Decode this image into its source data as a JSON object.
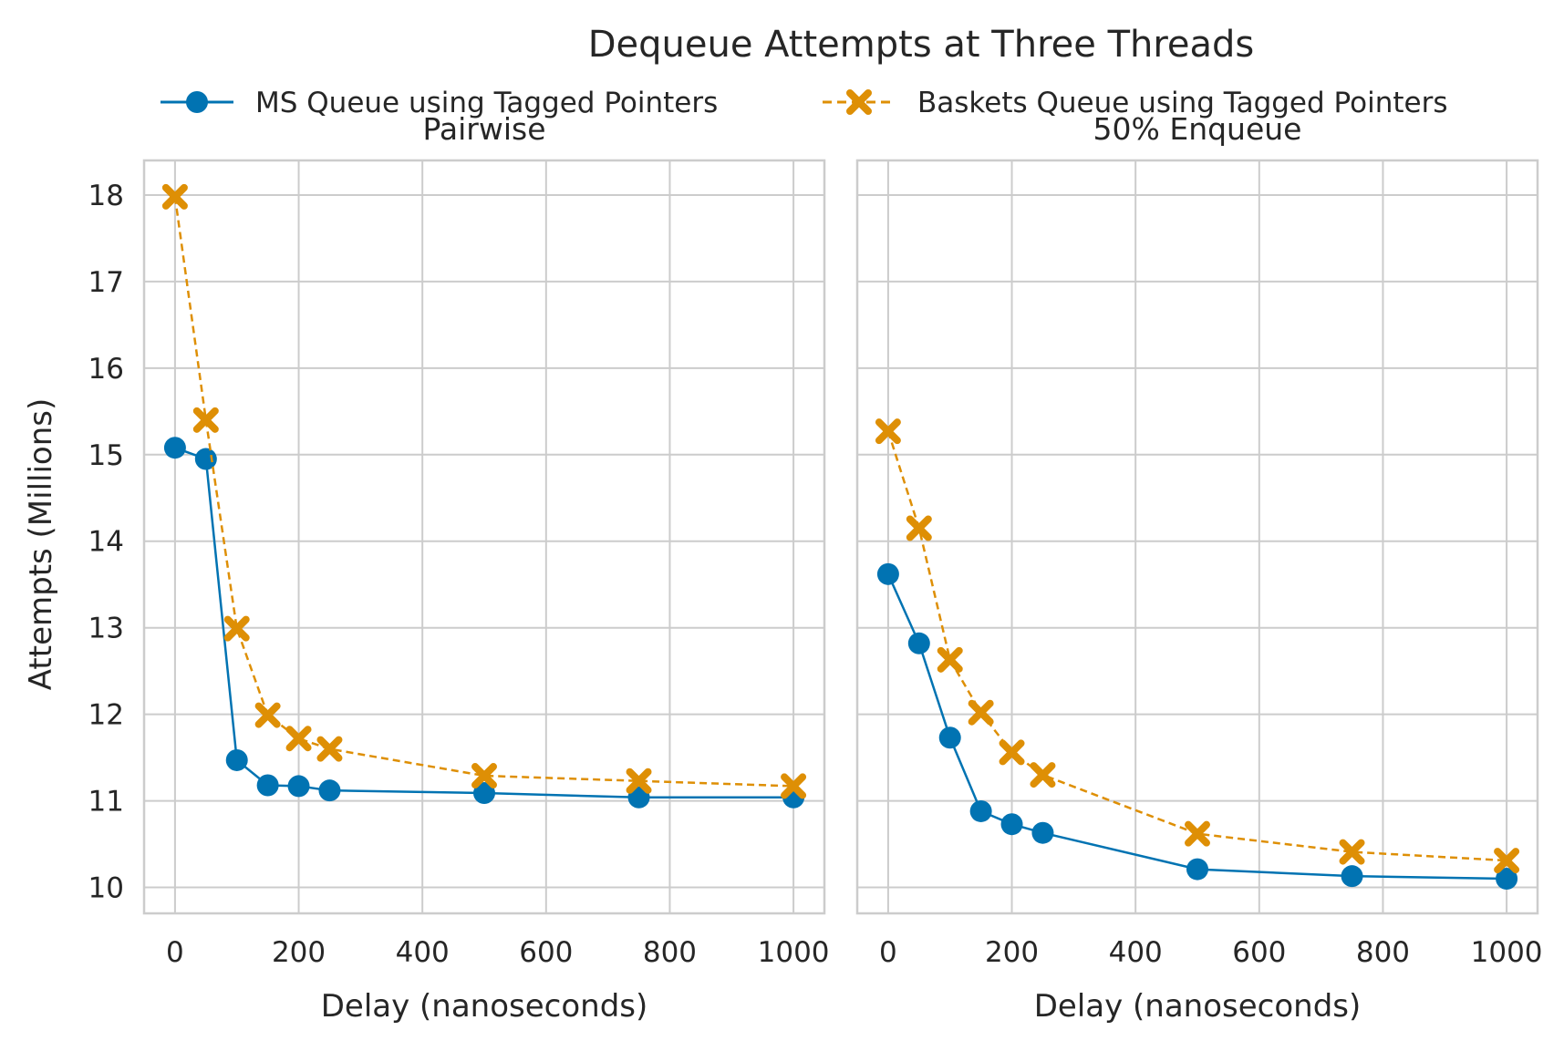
{
  "chart_data": {
    "type": "line",
    "title": "Dequeue Attempts at Three Threads",
    "xlabel": "Delay (nanoseconds)",
    "ylabel": "Attempts (Millions)",
    "ylim": [
      9.7,
      18.4
    ],
    "xlim": [
      -50,
      1050
    ],
    "xticks": [
      0,
      200,
      400,
      600,
      800,
      1000
    ],
    "yticks": [
      10,
      11,
      12,
      13,
      14,
      15,
      16,
      17,
      18
    ],
    "grid": true,
    "legend_position": "top",
    "series_styles": [
      {
        "name": "MS Queue using Tagged Pointers",
        "color": "#0173b2",
        "marker": "circle",
        "line": "solid"
      },
      {
        "name": "Baskets Queue using Tagged Pointers",
        "color": "#de8f05",
        "marker": "x",
        "line": "dashed"
      }
    ],
    "panels": [
      {
        "subtitle": "Pairwise",
        "x": [
          0,
          50,
          100,
          150,
          200,
          250,
          500,
          750,
          1000
        ],
        "series": [
          {
            "name": "MS Queue using Tagged Pointers",
            "values": [
              15.08,
              14.95,
              11.47,
              11.18,
              11.17,
              11.12,
              11.09,
              11.04,
              11.04
            ]
          },
          {
            "name": "Baskets Queue using Tagged Pointers",
            "values": [
              17.98,
              15.4,
              12.99,
              11.99,
              11.72,
              11.6,
              11.29,
              11.23,
              11.17
            ]
          }
        ]
      },
      {
        "subtitle": "50% Enqueue",
        "x": [
          0,
          50,
          100,
          150,
          200,
          250,
          500,
          750,
          1000
        ],
        "series": [
          {
            "name": "MS Queue using Tagged Pointers",
            "values": [
              13.62,
              12.82,
              11.73,
              10.88,
              10.73,
              10.63,
              10.21,
              10.13,
              10.1
            ]
          },
          {
            "name": "Baskets Queue using Tagged Pointers",
            "values": [
              15.27,
              14.15,
              12.63,
              12.02,
              11.56,
              11.3,
              10.62,
              10.41,
              10.31
            ]
          }
        ]
      }
    ]
  }
}
